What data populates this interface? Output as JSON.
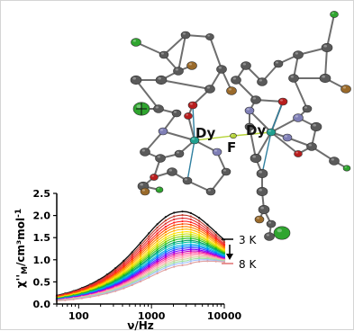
{
  "molecule": {
    "atom_labels": [
      "Dy",
      "F",
      "Dy"
    ],
    "colors": {
      "carbon": "#5a5a5a",
      "nitrogen": "#7f7fb6",
      "oxygen": "#b81e1e",
      "bromine": "#9a6a2a",
      "chlorine": "#2fa52f",
      "fluorine": "#b6d43a",
      "dysprosium": "#1f9f8f",
      "bond": "#6e6e6e",
      "coordination": "#2f7f9f"
    }
  },
  "chart_data": {
    "type": "line",
    "ylabel_main": "χ''",
    "ylabel_sub": "M",
    "ylabel_rest": "/cm³mol",
    "ylabel_sup": "-1",
    "xlabel": "ν/Hz",
    "xscale": "log",
    "xlim": [
      50,
      10000
    ],
    "ylim": [
      0.0,
      2.5
    ],
    "yticks": [
      "0.0",
      "0.5",
      "1.0",
      "1.5",
      "2.0",
      "2.5"
    ],
    "xticks": [
      "100",
      "1000",
      "10000"
    ],
    "legend": {
      "top": "3 K",
      "bottom": "8 K"
    },
    "series_colors": [
      "#111111",
      "#c0392b",
      "#e03030",
      "#ff2020",
      "#ff4d00",
      "#ff8000",
      "#ffb300",
      "#ffe000",
      "#c8e000",
      "#7fd000",
      "#20c020",
      "#00a060",
      "#00c0a0",
      "#00b0e0",
      "#0080ff",
      "#4040ff",
      "#8000ff",
      "#c000c0",
      "#ff40a0",
      "#ff80b0",
      "#ffb0b0",
      "#d0d0a0",
      "#a0e0a0",
      "#a0c0ff",
      "#e0a0a0"
    ],
    "series": [
      {
        "name": "3 K",
        "peak": 2.08,
        "end": 1.45
      },
      {
        "peak": 2.0,
        "end": 1.4
      },
      {
        "peak": 1.93,
        "end": 1.36
      },
      {
        "peak": 1.86,
        "end": 1.33
      },
      {
        "peak": 1.8,
        "end": 1.3
      },
      {
        "peak": 1.74,
        "end": 1.27
      },
      {
        "peak": 1.68,
        "end": 1.24
      },
      {
        "peak": 1.62,
        "end": 1.21
      },
      {
        "peak": 1.57,
        "end": 1.19
      },
      {
        "peak": 1.52,
        "end": 1.17
      },
      {
        "peak": 1.47,
        "end": 1.15
      },
      {
        "peak": 1.42,
        "end": 1.13
      },
      {
        "peak": 1.38,
        "end": 1.11
      },
      {
        "peak": 1.33,
        "end": 1.09
      },
      {
        "peak": 1.29,
        "end": 1.07
      },
      {
        "peak": 1.25,
        "end": 1.05
      },
      {
        "peak": 1.21,
        "end": 1.03
      },
      {
        "peak": 1.17,
        "end": 1.02
      },
      {
        "peak": 1.13,
        "end": 1.01
      },
      {
        "peak": 1.09,
        "end": 1.0
      },
      {
        "peak": 1.05,
        "end": 0.99
      },
      {
        "peak": 1.01,
        "end": 0.98
      },
      {
        "peak": 0.97,
        "end": 0.97
      },
      {
        "peak": 0.93,
        "end": 0.96
      },
      {
        "name": "8 K",
        "peak": 0.88,
        "end": 0.95
      }
    ]
  }
}
